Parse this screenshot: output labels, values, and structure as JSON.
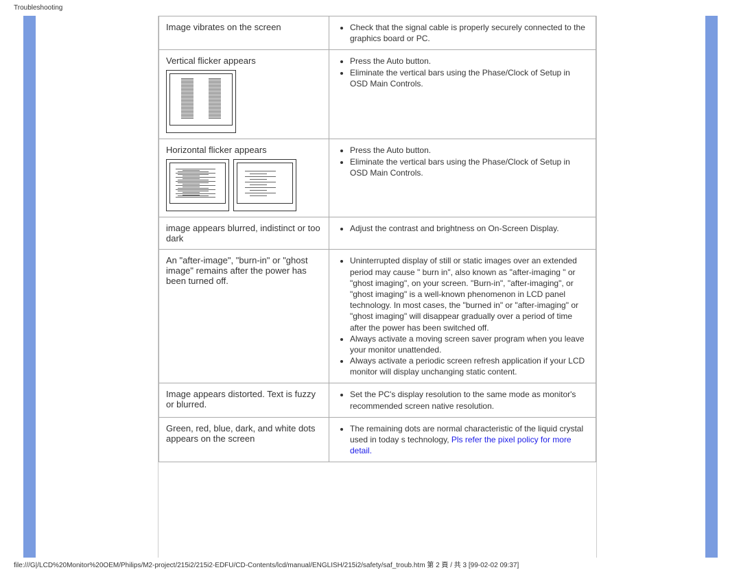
{
  "header": "Troubleshooting",
  "rows": [
    {
      "problem": "Image vibrates on the screen",
      "solutions": [
        "Check that the signal cable is properly securely connected to the graphics board or PC."
      ]
    },
    {
      "problem": "Vertical flicker appears",
      "figure": "vertical",
      "solutions": [
        "Press the Auto button.",
        "Eliminate the vertical bars using the Phase/Clock of Setup in OSD Main Controls."
      ]
    },
    {
      "problem": "Horizontal flicker appears",
      "figure": "horizontal",
      "solutions": [
        "Press the Auto button.",
        "Eliminate the vertical bars using the Phase/Clock of Setup in OSD Main Controls."
      ]
    },
    {
      "problem": "image appears blurred, indistinct or too dark",
      "solutions": [
        "Adjust the contrast and brightness on On-Screen Display."
      ]
    },
    {
      "problem": "An \"after-image\", \"burn-in\" or \"ghost image\" remains after the power has been turned off.",
      "solutions": [
        "Uninterrupted display of still or static images over an extended period may cause \" burn in\", also known as \"after-imaging \" or \"ghost imaging\", on your screen. \"Burn-in\", \"after-imaging\", or \"ghost imaging\" is a well-known phenomenon in LCD panel technology. In most cases, the \"burned in\" or \"after-imaging\" or \"ghost imaging\" will disappear gradually over a period of time after the power has been switched off.",
        "Always activate a moving screen saver program when you leave your monitor unattended.",
        "Always activate a periodic screen refresh application if your LCD monitor will display unchanging static content."
      ]
    },
    {
      "problem": "Image appears distorted. Text   is fuzzy or blurred.",
      "solutions": [
        "Set the PC's display resolution to the same mode as monitor's recommended screen native resolution."
      ]
    },
    {
      "problem": "Green, red, blue, dark, and white dots appears on the screen",
      "solutions_html": "The remaining dots are normal characteristic of the liquid crystal used in today s technology, {{LINK}}",
      "link_text": "Pls refer the pixel policy for more detail."
    }
  ],
  "footer": "file:///G|/LCD%20Monitor%20OEM/Philips/M2-project/215i2/215i2-EDFU/CD-Contents/lcd/manual/ENGLISH/215i2/safety/saf_troub.htm 第 2 頁 / 共 3 [99-02-02 09:37]",
  "colors": {
    "blue_strip": "#7a9ce0",
    "border": "#aaaaaa",
    "text": "#333333",
    "link": "#1a1ae8"
  }
}
